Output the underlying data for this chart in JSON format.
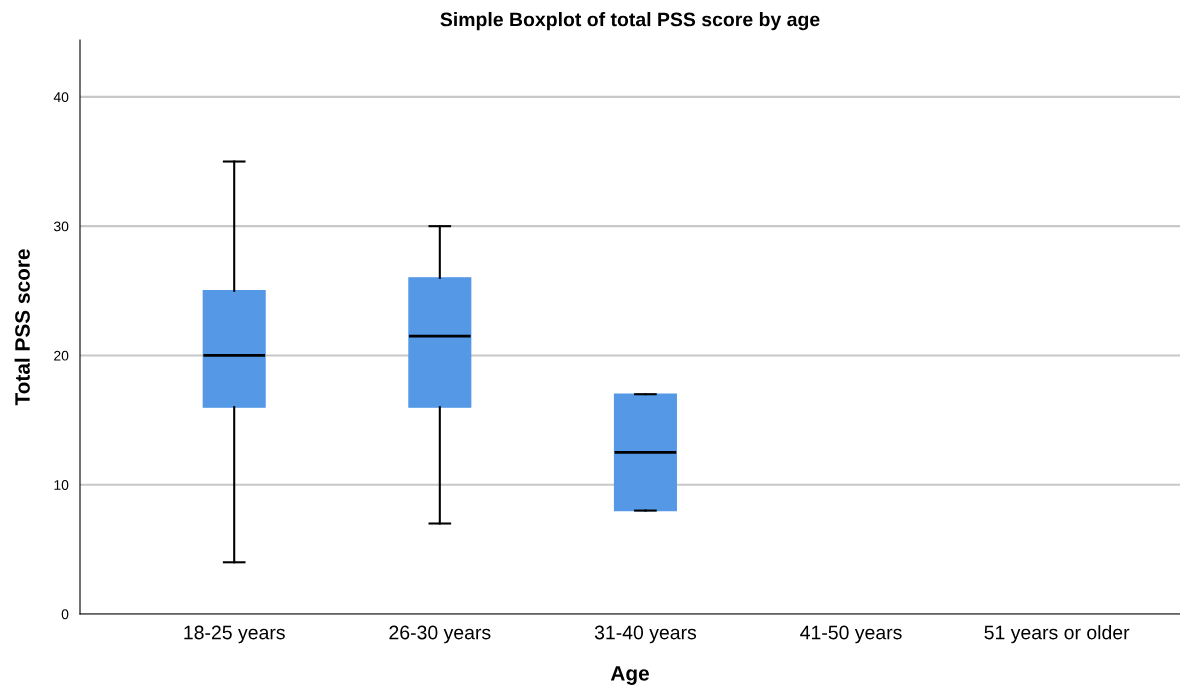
{
  "chart_data": {
    "type": "box",
    "title": "Simple Boxplot of total PSS score by age",
    "xlabel": "Age",
    "ylabel": "Total PSS score",
    "categories": [
      "18-25 years",
      "26-30 years",
      "31-40 years",
      "41-50 years",
      "51 years or older"
    ],
    "boxes": [
      {
        "low": 4,
        "q1": 16,
        "median": 20,
        "q3": 25,
        "high": 35
      },
      {
        "low": 7,
        "q1": 16,
        "median": 21.5,
        "q3": 26,
        "high": 30
      },
      {
        "low": 8,
        "q1": 8,
        "median": 12.5,
        "q3": 17,
        "high": 17
      },
      null,
      null
    ],
    "color": "#5599e6",
    "ylim": [
      0,
      44.4
    ],
    "yticks": [
      0,
      10,
      20,
      30,
      40
    ],
    "grid": "y"
  }
}
